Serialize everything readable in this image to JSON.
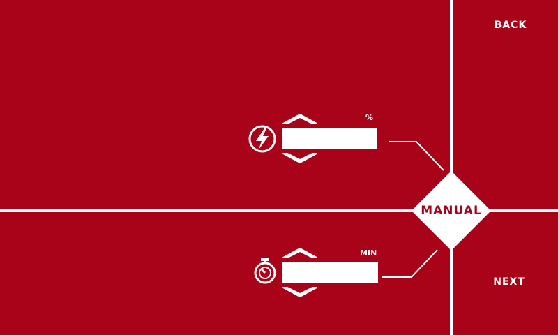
{
  "nav": {
    "back_label": "BACK",
    "next_label": "NEXT"
  },
  "mode": {
    "label": "MANUAL"
  },
  "power": {
    "unit": "%",
    "value": "",
    "icon": "lightning-bolt-icon"
  },
  "time": {
    "unit": "MIN",
    "value": "",
    "icon": "stopwatch-icon"
  },
  "colors": {
    "background": "#a80319",
    "foreground": "#ffffff"
  }
}
